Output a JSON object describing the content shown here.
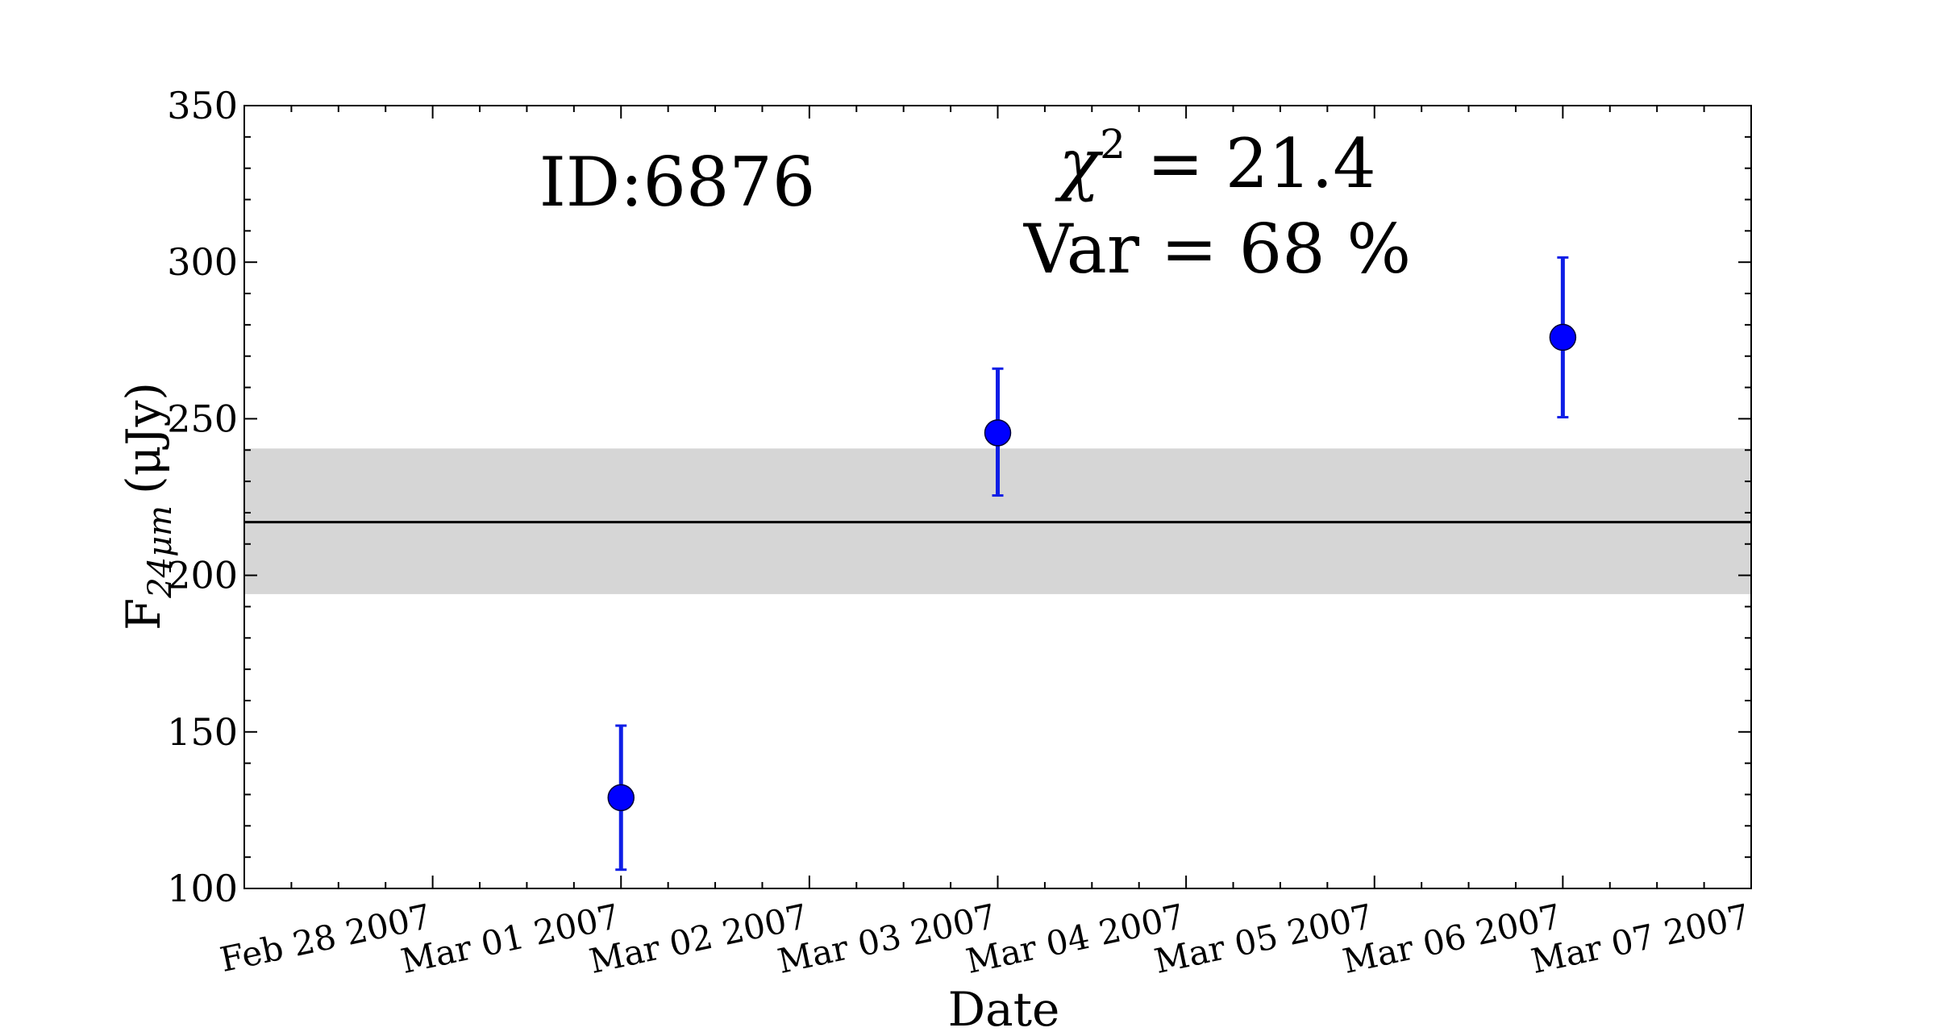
{
  "chart_data": {
    "type": "scatter",
    "title": "",
    "xlabel": "Date",
    "ylabel_main": "F",
    "ylabel_sub": "24μm",
    "ylabel_unit": "(μJy)",
    "ylim": [
      100,
      350
    ],
    "yticks": [
      100,
      150,
      200,
      250,
      300,
      350
    ],
    "xlim": [
      "2007-02-27",
      "2007-03-07"
    ],
    "xticks": [
      "Feb 28 2007",
      "Mar 01 2007",
      "Mar 02 2007",
      "Mar 03 2007",
      "Mar 04 2007",
      "Mar 05 2007",
      "Mar 06 2007",
      "Mar 07 2007"
    ],
    "points": [
      {
        "date": "2007-03-01",
        "y": 129,
        "err_low": 106,
        "err_high": 152
      },
      {
        "date": "2007-03-03",
        "y": 245.5,
        "err_low": 225.5,
        "err_high": 266
      },
      {
        "date": "2007-03-06",
        "y": 276,
        "err_low": 250.5,
        "err_high": 301.5
      }
    ],
    "mean_line": 217,
    "band": [
      194,
      240.5
    ],
    "grid": false,
    "colors": {
      "points": "#0000ff",
      "errorbars": "#0f1ee6",
      "band": "#d6d6d6",
      "mean_line": "#000000"
    },
    "annotations": {
      "id_label": "ID:6876",
      "chi_sym": "χ",
      "chi_exp": "2",
      "chi_value": " = 21.4",
      "var_label": "Var = 68 %"
    }
  }
}
